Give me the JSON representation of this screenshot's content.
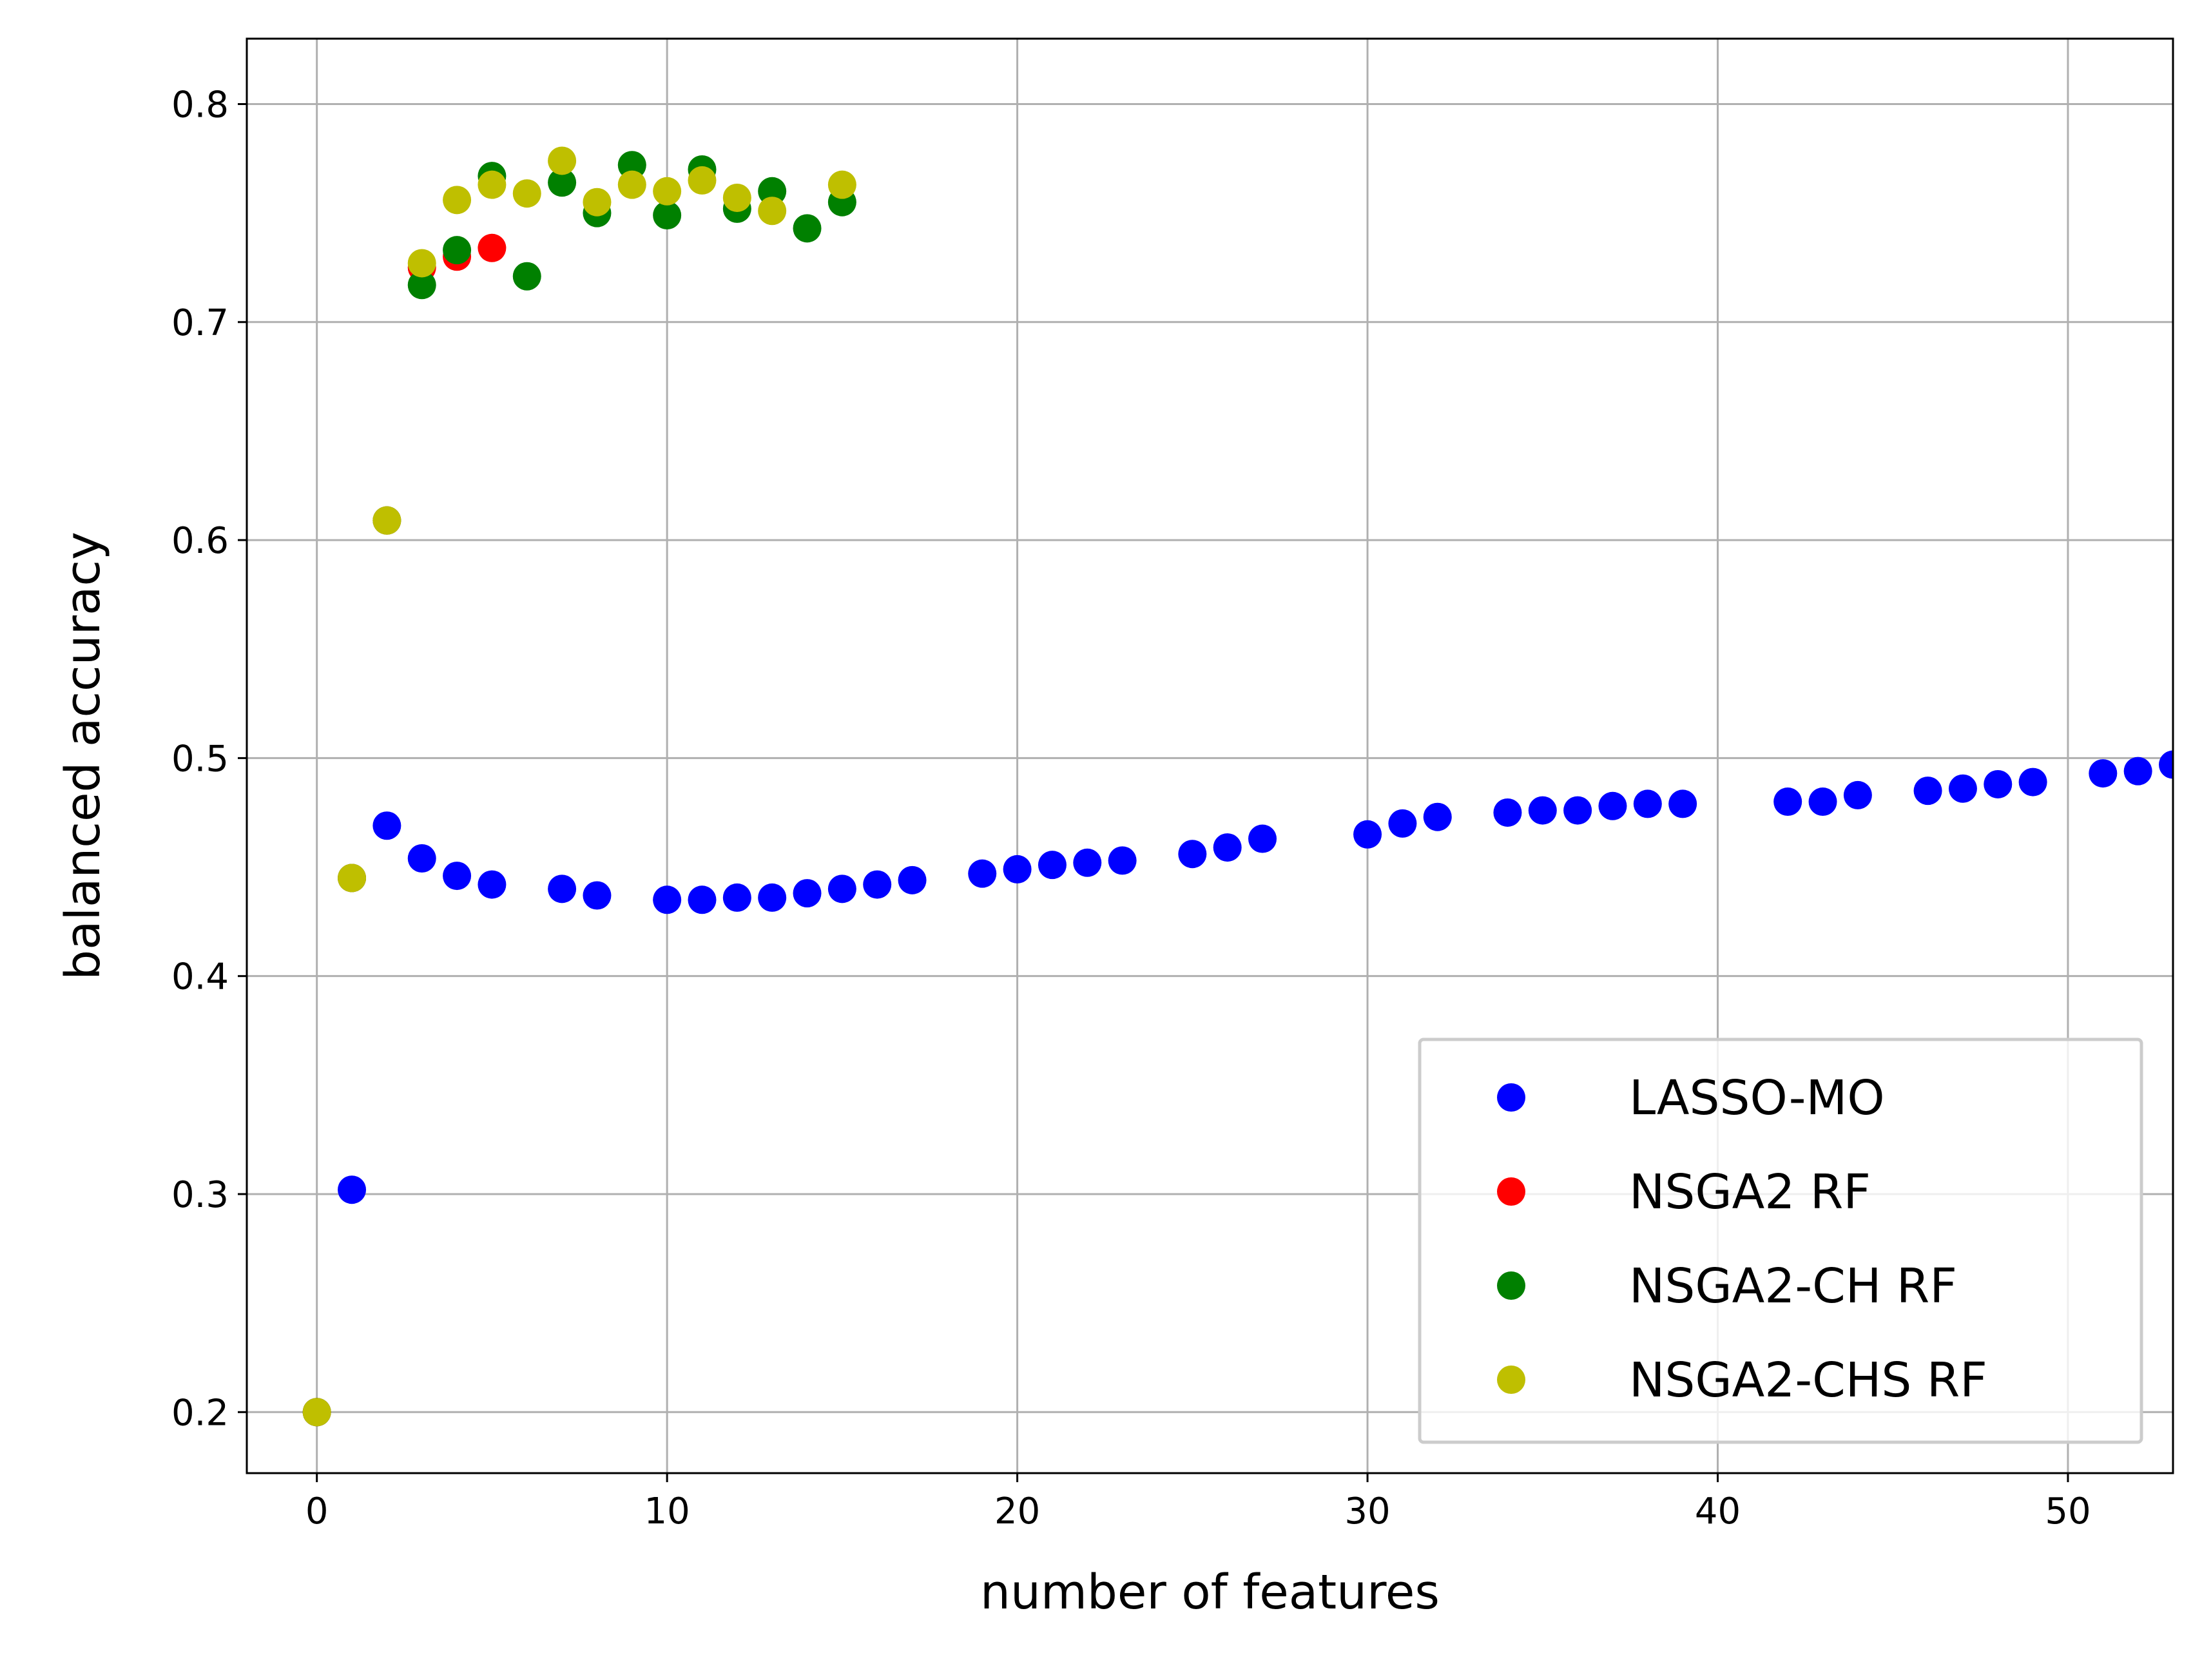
{
  "chart_data": {
    "type": "scatter",
    "xlabel": "number of features",
    "ylabel": "balanced accuracy",
    "xlim": [
      -2,
      53
    ],
    "ylim": [
      0.172,
      0.83
    ],
    "xticks": [
      0,
      10,
      20,
      30,
      40,
      50
    ],
    "yticks": [
      0.2,
      0.3,
      0.4,
      0.5,
      0.6,
      0.7,
      0.8
    ],
    "xtick_labels": [
      "0",
      "10",
      "20",
      "30",
      "40",
      "50"
    ],
    "ytick_labels": [
      "0.2",
      "0.3",
      "0.4",
      "0.5",
      "0.6",
      "0.7",
      "0.8"
    ],
    "grid": true,
    "legend_position": "lower-right",
    "series": [
      {
        "name": "LASSO-MO",
        "color": "#0000ff",
        "points": [
          [
            0,
            0.2
          ],
          [
            1,
            0.302
          ],
          [
            2,
            0.469
          ],
          [
            3,
            0.454
          ],
          [
            4,
            0.446
          ],
          [
            5,
            0.442
          ],
          [
            7,
            0.44
          ],
          [
            8,
            0.437
          ],
          [
            10,
            0.435
          ],
          [
            11,
            0.435
          ],
          [
            12,
            0.436
          ],
          [
            13,
            0.436
          ],
          [
            14,
            0.438
          ],
          [
            15,
            0.44
          ],
          [
            16,
            0.442
          ],
          [
            17,
            0.444
          ],
          [
            19,
            0.447
          ],
          [
            20,
            0.449
          ],
          [
            21,
            0.451
          ],
          [
            22,
            0.452
          ],
          [
            23,
            0.453
          ],
          [
            25,
            0.456
          ],
          [
            26,
            0.459
          ],
          [
            27,
            0.463
          ],
          [
            30,
            0.465
          ],
          [
            31,
            0.47
          ],
          [
            32,
            0.473
          ],
          [
            34,
            0.475
          ],
          [
            35,
            0.476
          ],
          [
            36,
            0.476
          ],
          [
            37,
            0.478
          ],
          [
            38,
            0.479
          ],
          [
            39,
            0.479
          ],
          [
            42,
            0.48
          ],
          [
            43,
            0.48
          ],
          [
            44,
            0.483
          ],
          [
            46,
            0.485
          ],
          [
            47,
            0.486
          ],
          [
            48,
            0.488
          ],
          [
            49,
            0.489
          ],
          [
            51,
            0.493
          ],
          [
            52,
            0.494
          ],
          [
            53,
            0.497
          ]
        ]
      },
      {
        "name": "NSGA2 RF",
        "color": "#ff0000",
        "points": [
          [
            0,
            0.2
          ],
          [
            1,
            0.445
          ],
          [
            2,
            0.609
          ],
          [
            3,
            0.725
          ],
          [
            4,
            0.73
          ],
          [
            5,
            0.734
          ]
        ]
      },
      {
        "name": "NSGA2-CH RF",
        "color": "#008000",
        "points": [
          [
            0,
            0.2
          ],
          [
            1,
            0.445
          ],
          [
            2,
            0.609
          ],
          [
            3,
            0.717
          ],
          [
            4,
            0.733
          ],
          [
            5,
            0.767
          ],
          [
            6,
            0.721
          ],
          [
            7,
            0.764
          ],
          [
            8,
            0.75
          ],
          [
            9,
            0.772
          ],
          [
            10,
            0.749
          ],
          [
            11,
            0.77
          ],
          [
            12,
            0.752
          ],
          [
            13,
            0.76
          ],
          [
            14,
            0.743
          ],
          [
            15,
            0.755
          ]
        ]
      },
      {
        "name": "NSGA2-CHS RF",
        "color": "#bfbf00",
        "points": [
          [
            0,
            0.2
          ],
          [
            1,
            0.445
          ],
          [
            2,
            0.609
          ],
          [
            3,
            0.727
          ],
          [
            4,
            0.756
          ],
          [
            5,
            0.763
          ],
          [
            6,
            0.759
          ],
          [
            7,
            0.774
          ],
          [
            8,
            0.755
          ],
          [
            9,
            0.763
          ],
          [
            10,
            0.76
          ],
          [
            11,
            0.765
          ],
          [
            12,
            0.757
          ],
          [
            13,
            0.751
          ],
          [
            15,
            0.763
          ]
        ]
      }
    ]
  }
}
